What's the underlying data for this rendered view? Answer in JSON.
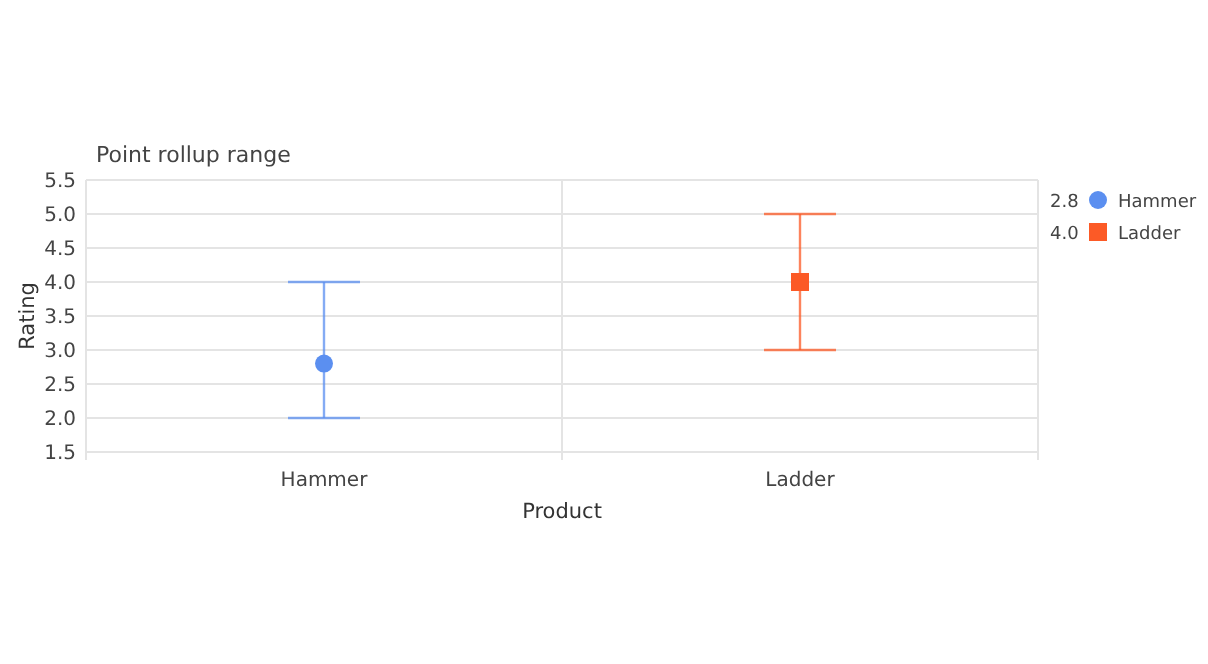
{
  "chart_data": {
    "type": "scatter",
    "title": "Point rollup range",
    "xlabel": "Product",
    "ylabel": "Rating",
    "categories": [
      "Hammer",
      "Ladder"
    ],
    "series": [
      {
        "name": "Hammer",
        "color": "#5b8ff0",
        "marker": "circle",
        "values": [
          2.8,
          null
        ],
        "errors": [
          [
            2.0,
            4.0
          ],
          null
        ]
      },
      {
        "name": "Ladder",
        "color": "#fc5a26",
        "marker": "square",
        "values": [
          null,
          4.0
        ],
        "errors": [
          null,
          [
            3.0,
            5.0
          ]
        ]
      }
    ],
    "ylim": [
      1.5,
      5.5
    ],
    "yticks": [
      {
        "value": 1.5,
        "label": "1.5"
      },
      {
        "value": 2,
        "label": "2.0"
      },
      {
        "value": 2.5,
        "label": "2.5"
      },
      {
        "value": 3,
        "label": "3.0"
      },
      {
        "value": 3.5,
        "label": "3.5"
      },
      {
        "value": 4,
        "label": "4.0"
      },
      {
        "value": 4.5,
        "label": "4.5"
      },
      {
        "value": 5,
        "label": "5.0"
      },
      {
        "value": 5.5,
        "label": "5.5"
      }
    ],
    "annotations": [
      "2.8",
      "4.0"
    ],
    "grid": true,
    "legend": "top right"
  }
}
